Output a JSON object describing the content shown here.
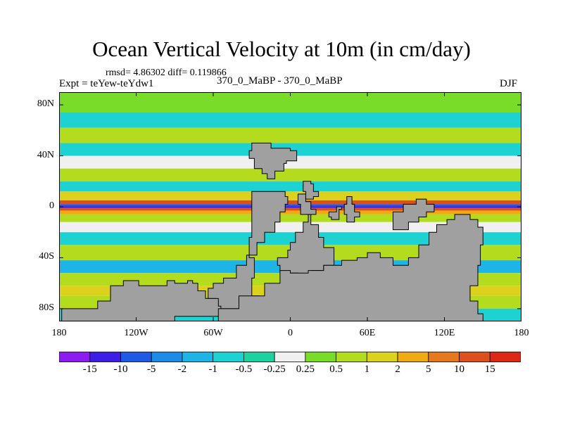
{
  "header": {
    "title": "Ocean Vertical Velocity at 10m (in cm/day)",
    "stats": "rmsd= 4.86302 diff= 0.119866",
    "experiment": "Expt = teYew-teYdw1",
    "comparison": "370_0_MaBP - 370_0_MaBP",
    "season": "DJF"
  },
  "chart_data": {
    "type": "heatmap",
    "title": "Ocean Vertical Velocity at 10m (in cm/day)",
    "variable": "Ocean Vertical Velocity at 10m",
    "units": "cm/day",
    "xlabel": "",
    "ylabel": "",
    "xlim": [
      -180,
      180
    ],
    "ylim": [
      -90,
      90
    ],
    "x_ticks": [
      {
        "value": -180,
        "label": "180"
      },
      {
        "value": -120,
        "label": "120W"
      },
      {
        "value": -60,
        "label": "60W"
      },
      {
        "value": 0,
        "label": "0"
      },
      {
        "value": 60,
        "label": "60E"
      },
      {
        "value": 120,
        "label": "120E"
      },
      {
        "value": 180,
        "label": "180"
      }
    ],
    "y_ticks": [
      {
        "value": 80,
        "label": "80N"
      },
      {
        "value": 40,
        "label": "40N"
      },
      {
        "value": 0,
        "label": "0"
      },
      {
        "value": -40,
        "label": "40S"
      },
      {
        "value": -80,
        "label": "80S"
      }
    ],
    "land_color": "#a0a0a0",
    "colorbar": {
      "levels": [
        "-15",
        "-10",
        "-5",
        "-2",
        "-1",
        "-0.5",
        "-0.25",
        "0.25",
        "0.5",
        "1",
        "2",
        "5",
        "10",
        "15"
      ],
      "colors": [
        "#8c1cf0",
        "#3c1ee6",
        "#1e5ae6",
        "#1e8ce6",
        "#1eb4e6",
        "#1ed2d2",
        "#1ed2a0",
        "#f0f0f0",
        "#78dc28",
        "#b4dc1e",
        "#dcd21e",
        "#f0aa14",
        "#e6781e",
        "#dc501e",
        "#dc2814"
      ]
    },
    "zonal_bands": [
      {
        "lat": [
          74,
          90
        ],
        "value": 0.4
      },
      {
        "lat": [
          62,
          74
        ],
        "value": -0.8
      },
      {
        "lat": [
          50,
          62
        ],
        "value": 0.6
      },
      {
        "lat": [
          40,
          50
        ],
        "value": -0.7
      },
      {
        "lat": [
          30,
          40
        ],
        "value": 0.0
      },
      {
        "lat": [
          20,
          30
        ],
        "value": 0.7
      },
      {
        "lat": [
          12,
          20
        ],
        "value": -0.6
      },
      {
        "lat": [
          5,
          12
        ],
        "value": 1.5
      },
      {
        "lat": [
          2,
          5
        ],
        "value": 10
      },
      {
        "lat": [
          0.5,
          2
        ],
        "value": -8
      },
      {
        "lat": [
          -1,
          0.5
        ],
        "value": -15
      },
      {
        "lat": [
          -3,
          -1
        ],
        "value": 12
      },
      {
        "lat": [
          -6,
          -3
        ],
        "value": 4
      },
      {
        "lat": [
          -12,
          -6
        ],
        "value": 0.6
      },
      {
        "lat": [
          -20,
          -12
        ],
        "value": 0.0
      },
      {
        "lat": [
          -30,
          -20
        ],
        "value": -0.7
      },
      {
        "lat": [
          -42,
          -30
        ],
        "value": 0.6
      },
      {
        "lat": [
          -52,
          -42
        ],
        "value": -1.2
      },
      {
        "lat": [
          -62,
          -52
        ],
        "value": 0.8
      },
      {
        "lat": [
          -70,
          -62
        ],
        "value": 1.5
      },
      {
        "lat": [
          -80,
          -70
        ],
        "value": 0.6
      },
      {
        "lat": [
          -90,
          -80
        ],
        "value": -0.7
      }
    ],
    "land_masses": [
      {
        "name": "north-america",
        "outline": [
          [
            -30,
            50
          ],
          [
            -20,
            50
          ],
          [
            -15,
            46
          ],
          [
            -5,
            46
          ],
          [
            0,
            44
          ],
          [
            5,
            40
          ],
          [
            5,
            36
          ],
          [
            -3,
            34
          ],
          [
            -5,
            28
          ],
          [
            -12,
            22
          ],
          [
            -18,
            26
          ],
          [
            -22,
            30
          ],
          [
            -28,
            38
          ],
          [
            -32,
            44
          ],
          [
            -30,
            50
          ]
        ]
      },
      {
        "name": "central-island",
        "outline": [
          [
            10,
            20
          ],
          [
            16,
            18
          ],
          [
            18,
            12
          ],
          [
            22,
            8
          ],
          [
            18,
            6
          ],
          [
            12,
            12
          ],
          [
            10,
            20
          ]
        ]
      },
      {
        "name": "south-america",
        "outline": [
          [
            -30,
            12
          ],
          [
            -12,
            12
          ],
          [
            -4,
            8
          ],
          [
            -2,
            2
          ],
          [
            -4,
            -4
          ],
          [
            -8,
            -12
          ],
          [
            -12,
            -20
          ],
          [
            -20,
            -28
          ],
          [
            -26,
            -38
          ],
          [
            -34,
            -46
          ],
          [
            -42,
            -56
          ],
          [
            -52,
            -60
          ],
          [
            -60,
            -64
          ],
          [
            -64,
            -72
          ],
          [
            -58,
            -80
          ],
          [
            -40,
            -86
          ],
          [
            -20,
            -86
          ],
          [
            -24,
            -70
          ],
          [
            -30,
            -56
          ],
          [
            -28,
            -40
          ],
          [
            -32,
            -24
          ],
          [
            -30,
            12
          ]
        ]
      },
      {
        "name": "africa",
        "outline": [
          [
            6,
            10
          ],
          [
            12,
            4
          ],
          [
            16,
            -2
          ],
          [
            20,
            -6
          ],
          [
            14,
            -12
          ],
          [
            10,
            -20
          ],
          [
            4,
            -28
          ],
          [
            0,
            -34
          ],
          [
            -2,
            -40
          ],
          [
            -10,
            -46
          ],
          [
            -8,
            -52
          ],
          [
            6,
            -54
          ],
          [
            16,
            -50
          ],
          [
            26,
            -46
          ],
          [
            34,
            -40
          ],
          [
            34,
            -32
          ],
          [
            26,
            -24
          ],
          [
            22,
            -14
          ],
          [
            16,
            -6
          ],
          [
            8,
            2
          ],
          [
            6,
            10
          ]
        ]
      },
      {
        "name": "africa-east",
        "outline": [
          [
            44,
            8
          ],
          [
            48,
            2
          ],
          [
            50,
            -4
          ],
          [
            54,
            -8
          ],
          [
            50,
            -12
          ],
          [
            44,
            -6
          ],
          [
            42,
            2
          ],
          [
            44,
            8
          ]
        ]
      },
      {
        "name": "australia",
        "outline": [
          [
            80,
            -18
          ],
          [
            92,
            -12
          ],
          [
            100,
            -8
          ],
          [
            106,
            -4
          ],
          [
            112,
            2
          ],
          [
            106,
            6
          ],
          [
            98,
            2
          ],
          [
            88,
            -4
          ],
          [
            80,
            -12
          ],
          [
            80,
            -18
          ]
        ]
      },
      {
        "name": "india-block",
        "outline": [
          [
            30,
            -4
          ],
          [
            36,
            0
          ],
          [
            40,
            -2
          ],
          [
            38,
            -10
          ],
          [
            32,
            -8
          ],
          [
            30,
            -4
          ]
        ]
      },
      {
        "name": "southern-continent",
        "outline": [
          [
            -140,
            -62
          ],
          [
            -130,
            -58
          ],
          [
            -120,
            -58
          ],
          [
            -118,
            -62
          ],
          [
            -100,
            -62
          ],
          [
            -96,
            -58
          ],
          [
            -90,
            -60
          ],
          [
            -80,
            -58
          ],
          [
            -76,
            -60
          ],
          [
            -72,
            -66
          ],
          [
            -66,
            -72
          ],
          [
            -56,
            -78
          ],
          [
            -54,
            -86
          ],
          [
            -90,
            -90
          ],
          [
            -130,
            -90
          ],
          [
            -170,
            -90
          ],
          [
            -178,
            -88
          ],
          [
            -178,
            -80
          ],
          [
            -160,
            -80
          ],
          [
            -150,
            -74
          ],
          [
            -140,
            -70
          ],
          [
            -140,
            -62
          ]
        ]
      },
      {
        "name": "antarctica-east",
        "outline": [
          [
            -8,
            -50
          ],
          [
            0,
            -52
          ],
          [
            14,
            -50
          ],
          [
            26,
            -46
          ],
          [
            40,
            -42
          ],
          [
            52,
            -40
          ],
          [
            60,
            -36
          ],
          [
            70,
            -40
          ],
          [
            80,
            -46
          ],
          [
            92,
            -40
          ],
          [
            100,
            -30
          ],
          [
            108,
            -20
          ],
          [
            114,
            -14
          ],
          [
            122,
            -10
          ],
          [
            128,
            -6
          ],
          [
            134,
            -6
          ],
          [
            140,
            -10
          ],
          [
            146,
            -16
          ],
          [
            150,
            -30
          ],
          [
            148,
            -46
          ],
          [
            146,
            -62
          ],
          [
            140,
            -74
          ],
          [
            146,
            -84
          ],
          [
            150,
            -90
          ],
          [
            40,
            -90
          ],
          [
            -50,
            -90
          ],
          [
            -56,
            -80
          ],
          [
            -40,
            -70
          ],
          [
            -20,
            -60
          ],
          [
            -8,
            -50
          ]
        ]
      }
    ]
  }
}
